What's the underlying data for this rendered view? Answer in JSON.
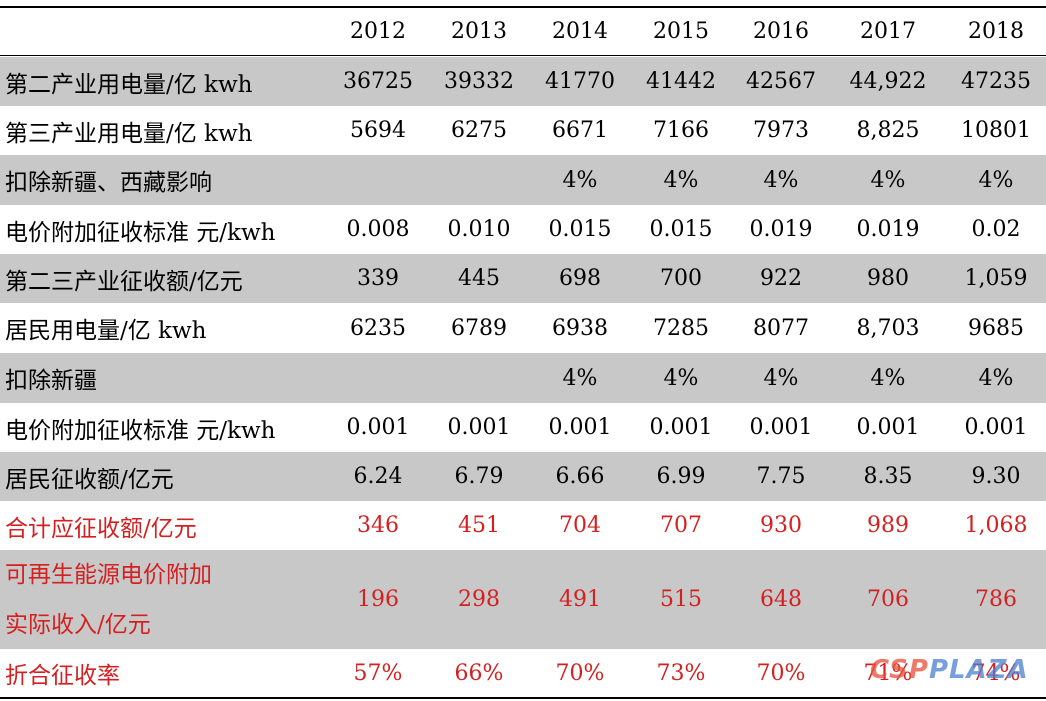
{
  "table": {
    "years": [
      "2012",
      "2013",
      "2014",
      "2015",
      "2016",
      "2017",
      "2018"
    ],
    "rows": [
      {
        "label": "第二产业用电量/亿 kwh",
        "values": [
          "36725",
          "39332",
          "41770",
          "41442",
          "42567",
          "44,922",
          "47235"
        ]
      },
      {
        "label": "第三产业用电量/亿 kwh",
        "values": [
          "5694",
          "6275",
          "6671",
          "7166",
          "7973",
          "8,825",
          "10801"
        ]
      },
      {
        "label": "扣除新疆、西藏影响",
        "values": [
          "",
          "",
          "4%",
          "4%",
          "4%",
          "4%",
          "4%"
        ]
      },
      {
        "label": "电价附加征收标准 元/kwh",
        "values": [
          "0.008",
          "0.010",
          "0.015",
          "0.015",
          "0.019",
          "0.019",
          "0.02"
        ]
      },
      {
        "label": "第二三产业征收额/亿元",
        "values": [
          "339",
          "445",
          "698",
          "700",
          "922",
          "980",
          "1,059"
        ]
      },
      {
        "label": "居民用电量/亿 kwh",
        "values": [
          "6235",
          "6789",
          "6938",
          "7285",
          "8077",
          "8,703",
          "9685"
        ]
      },
      {
        "label": "扣除新疆",
        "values": [
          "",
          "",
          "4%",
          "4%",
          "4%",
          "4%",
          "4%"
        ]
      },
      {
        "label": "电价附加征收标准 元/kwh",
        "values": [
          "0.001",
          "0.001",
          "0.001",
          "0.001",
          "0.001",
          "0.001",
          "0.001"
        ]
      },
      {
        "label": "居民征收额/亿元",
        "values": [
          "6.24",
          "6.79",
          "6.66",
          "6.99",
          "7.75",
          "8.35",
          "9.30"
        ]
      },
      {
        "label": "合计应征收额/亿元",
        "values": [
          "346",
          "451",
          "704",
          "707",
          "930",
          "989",
          "1,068"
        ]
      },
      {
        "label_line1": "可再生能源电价附加",
        "label_line2": "实际收入/亿元",
        "values": [
          "196",
          "298",
          "491",
          "515",
          "648",
          "706",
          "786"
        ]
      },
      {
        "label": "折合征收率",
        "values": [
          "57%",
          "66%",
          "70%",
          "73%",
          "70%",
          "71%",
          "74%"
        ]
      }
    ]
  },
  "colors": {
    "shade": "#c8c8c8",
    "highlight": "#d42020"
  },
  "watermark": {
    "part_a": "CSP",
    "part_b": "PLAZA"
  }
}
